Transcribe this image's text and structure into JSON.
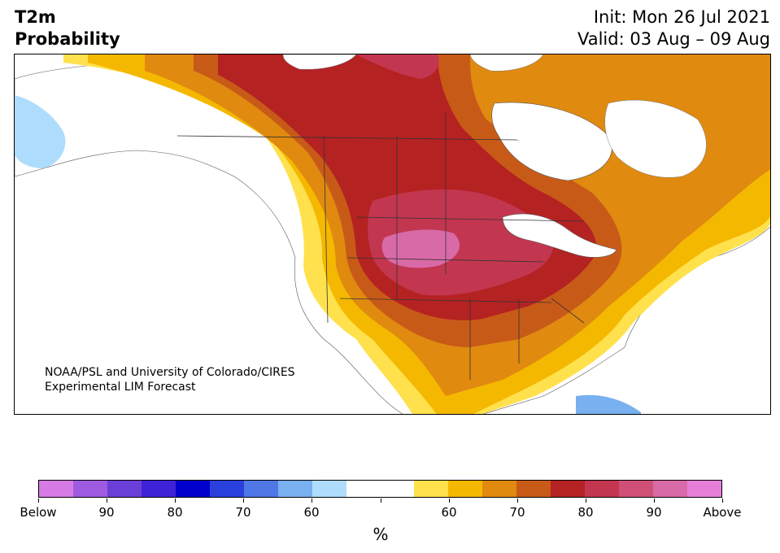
{
  "header": {
    "title_line1": "T2m",
    "title_line2": "Probability",
    "init": "Init: Mon 26 Jul 2021",
    "valid": "Valid: 03 Aug – 09 Aug"
  },
  "credit": {
    "line1": "NOAA/PSL and University of Colorado/CIRES",
    "line2": "Experimental LIM Forecast"
  },
  "colorbar": {
    "colors": [
      "#d67be6",
      "#9e5be0",
      "#6a3fd8",
      "#3d22d6",
      "#0000cd",
      "#2a40dc",
      "#4f78e6",
      "#78b0f0",
      "#aedcfc",
      "#ffffff",
      "#ffffff",
      "#ffe14d",
      "#f5b800",
      "#e08a10",
      "#c85a18",
      "#b52222",
      "#c23650",
      "#cf4f77",
      "#d96aa8",
      "#e67ed8"
    ],
    "tick_labels": [
      "Below",
      "90",
      "80",
      "70",
      "60",
      "",
      "60",
      "70",
      "80",
      "90",
      "Above"
    ],
    "unit": "%"
  },
  "map": {
    "colors": {
      "yellow": "#ffe14d",
      "orange": "#f5b800",
      "dark_orange": "#e08a10",
      "rust": "#c85a18",
      "red": "#b52222",
      "crimson": "#c23650",
      "rose": "#cf4f77",
      "pink": "#d96aa8",
      "light_blue": "#aedcfc",
      "blue": "#78b0f0",
      "water": "#ffffff"
    }
  }
}
